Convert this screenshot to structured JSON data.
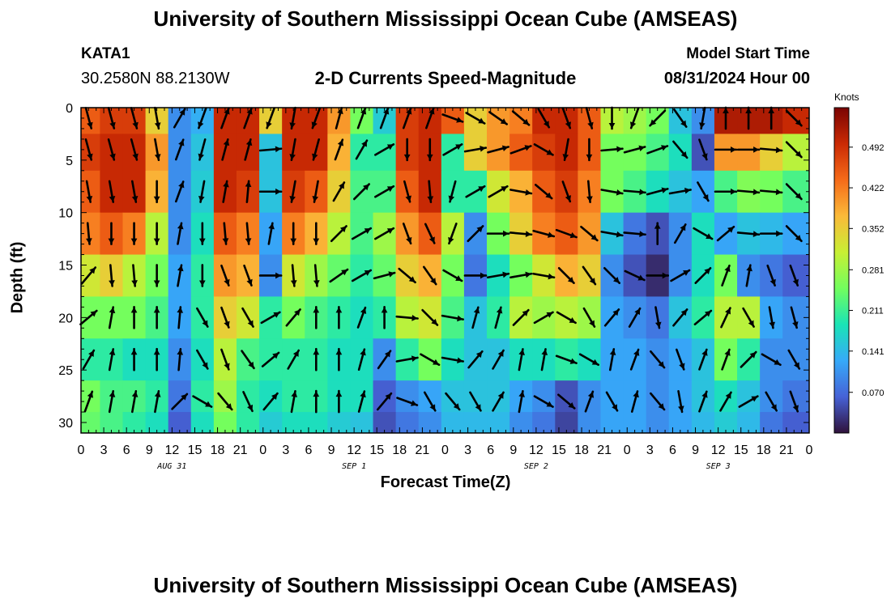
{
  "header": {
    "title": "University of Southern Mississippi Ocean Cube (AMSEAS)",
    "station": "KATA1",
    "coordinates": "30.2580N  88.2130W",
    "subtitle": "2-D Currents Speed-Magnitude",
    "model_start_label": "Model Start Time",
    "model_start_value": "08/31/2024 Hour 00"
  },
  "footer": {
    "title": "University of Southern Mississippi Ocean Cube (AMSEAS)"
  },
  "chart_data": {
    "type": "heatmap",
    "title": "2-D Currents Speed-Magnitude",
    "xlabel": "Forecast Time(Z)",
    "ylabel": "Depth (ft)",
    "colorbar_label": "Knots",
    "x_hours_range": [
      0,
      96
    ],
    "y_range": [
      0,
      31
    ],
    "y_ticks": [
      0,
      5,
      10,
      15,
      20,
      25,
      30
    ],
    "x_tick_labels": [
      "0",
      "3",
      "6",
      "9",
      "12",
      "15",
      "18",
      "21",
      "0",
      "3",
      "6",
      "9",
      "12",
      "15",
      "18",
      "21",
      "0",
      "3",
      "6",
      "9",
      "12",
      "15",
      "18",
      "21",
      "0",
      "3",
      "6",
      "9",
      "12",
      "15",
      "18",
      "21",
      "0"
    ],
    "date_labels": [
      {
        "label": "AUG 31",
        "hour": 12
      },
      {
        "label": "SEP 1",
        "hour": 36
      },
      {
        "label": "SEP 2",
        "hour": 60
      },
      {
        "label": "SEP 3",
        "hour": 84
      }
    ],
    "colorbar_ticks": [
      0.07,
      0.141,
      0.211,
      0.281,
      0.352,
      0.422,
      0.492
    ],
    "colorbar_tick_labels": [
      "0.070",
      "0.141",
      "0.211",
      "0.281",
      "0.352",
      "0.422",
      "0.492"
    ],
    "colorbar_range": [
      0,
      0.56
    ],
    "colormap": [
      "#30123b",
      "#4662d7",
      "#36aaf9",
      "#1ae4b6",
      "#72fe5e",
      "#c8ef34",
      "#faba39",
      "#f66b19",
      "#ca2a04",
      "#7a0403"
    ],
    "depths_ft": [
      1,
      4,
      8,
      12,
      16,
      20,
      24,
      28,
      30
    ],
    "hours": [
      1,
      4,
      7,
      10,
      13,
      16,
      19,
      22,
      25,
      28,
      31,
      34,
      37,
      40,
      43,
      46,
      49,
      52,
      55,
      58,
      61,
      64,
      67,
      70,
      73,
      76,
      79,
      82,
      85,
      88,
      91,
      94
    ],
    "speed_knots": [
      [
        0.45,
        0.48,
        0.48,
        0.35,
        0.1,
        0.13,
        0.5,
        0.5,
        0.35,
        0.5,
        0.5,
        0.4,
        0.25,
        0.16,
        0.48,
        0.5,
        0.45,
        0.35,
        0.4,
        0.42,
        0.5,
        0.5,
        0.45,
        0.3,
        0.28,
        0.25,
        0.15,
        0.1,
        0.52,
        0.52,
        0.52,
        0.5
      ],
      [
        0.48,
        0.5,
        0.5,
        0.4,
        0.1,
        0.15,
        0.5,
        0.5,
        0.15,
        0.5,
        0.5,
        0.38,
        0.2,
        0.2,
        0.48,
        0.5,
        0.2,
        0.35,
        0.4,
        0.45,
        0.48,
        0.5,
        0.45,
        0.25,
        0.25,
        0.22,
        0.18,
        0.05,
        0.4,
        0.4,
        0.35,
        0.3
      ],
      [
        0.45,
        0.5,
        0.5,
        0.38,
        0.1,
        0.16,
        0.5,
        0.48,
        0.15,
        0.48,
        0.45,
        0.35,
        0.22,
        0.22,
        0.45,
        0.5,
        0.2,
        0.2,
        0.32,
        0.38,
        0.45,
        0.48,
        0.42,
        0.25,
        0.22,
        0.18,
        0.15,
        0.12,
        0.22,
        0.26,
        0.25,
        0.22
      ],
      [
        0.42,
        0.45,
        0.42,
        0.3,
        0.1,
        0.18,
        0.45,
        0.42,
        0.12,
        0.42,
        0.38,
        0.3,
        0.22,
        0.28,
        0.4,
        0.45,
        0.3,
        0.1,
        0.25,
        0.35,
        0.42,
        0.45,
        0.4,
        0.15,
        0.08,
        0.05,
        0.1,
        0.18,
        0.12,
        0.15,
        0.14,
        0.12
      ],
      [
        0.32,
        0.35,
        0.3,
        0.25,
        0.12,
        0.2,
        0.4,
        0.38,
        0.1,
        0.32,
        0.28,
        0.24,
        0.2,
        0.24,
        0.35,
        0.38,
        0.25,
        0.08,
        0.18,
        0.25,
        0.32,
        0.38,
        0.35,
        0.1,
        0.05,
        0.02,
        0.1,
        0.18,
        0.25,
        0.1,
        0.08,
        0.06
      ],
      [
        0.25,
        0.25,
        0.25,
        0.22,
        0.12,
        0.2,
        0.35,
        0.32,
        0.2,
        0.25,
        0.22,
        0.2,
        0.18,
        0.2,
        0.3,
        0.32,
        0.22,
        0.15,
        0.2,
        0.3,
        0.28,
        0.3,
        0.28,
        0.12,
        0.1,
        0.08,
        0.15,
        0.2,
        0.3,
        0.3,
        0.12,
        0.1
      ],
      [
        0.2,
        0.2,
        0.18,
        0.18,
        0.1,
        0.18,
        0.3,
        0.22,
        0.2,
        0.2,
        0.2,
        0.18,
        0.18,
        0.1,
        0.2,
        0.25,
        0.18,
        0.15,
        0.15,
        0.18,
        0.18,
        0.2,
        0.18,
        0.12,
        0.12,
        0.1,
        0.12,
        0.15,
        0.25,
        0.2,
        0.1,
        0.1
      ],
      [
        0.25,
        0.22,
        0.22,
        0.2,
        0.08,
        0.2,
        0.28,
        0.2,
        0.18,
        0.2,
        0.2,
        0.18,
        0.18,
        0.06,
        0.1,
        0.12,
        0.15,
        0.15,
        0.15,
        0.12,
        0.1,
        0.05,
        0.1,
        0.12,
        0.12,
        0.1,
        0.12,
        0.15,
        0.18,
        0.15,
        0.1,
        0.08
      ],
      [
        0.24,
        0.22,
        0.2,
        0.18,
        0.06,
        0.18,
        0.25,
        0.2,
        0.16,
        0.18,
        0.18,
        0.16,
        0.15,
        0.05,
        0.08,
        0.1,
        0.14,
        0.14,
        0.14,
        0.1,
        0.08,
        0.04,
        0.1,
        0.12,
        0.12,
        0.1,
        0.12,
        0.14,
        0.16,
        0.14,
        0.08,
        0.06
      ]
    ],
    "direction_deg": [
      [
        165,
        165,
        165,
        170,
        30,
        200,
        20,
        20,
        200,
        190,
        200,
        15,
        20,
        20,
        20,
        20,
        110,
        120,
        125,
        130,
        150,
        160,
        165,
        180,
        200,
        225,
        145,
        190,
        0,
        0,
        0,
        135
      ],
      [
        165,
        165,
        165,
        170,
        20,
        195,
        15,
        15,
        85,
        190,
        195,
        20,
        30,
        60,
        180,
        180,
        60,
        80,
        75,
        70,
        120,
        190,
        180,
        85,
        75,
        70,
        140,
        160,
        90,
        90,
        95,
        135
      ],
      [
        170,
        170,
        170,
        180,
        20,
        190,
        10,
        5,
        90,
        190,
        190,
        30,
        45,
        60,
        165,
        175,
        195,
        60,
        60,
        100,
        130,
        160,
        175,
        100,
        95,
        75,
        80,
        150,
        90,
        95,
        95,
        135
      ],
      [
        175,
        180,
        180,
        180,
        10,
        180,
        175,
        175,
        10,
        180,
        180,
        45,
        60,
        60,
        160,
        155,
        200,
        45,
        90,
        95,
        105,
        110,
        130,
        100,
        95,
        0,
        30,
        120,
        50,
        95,
        90,
        135
      ],
      [
        40,
        175,
        175,
        180,
        10,
        180,
        160,
        160,
        90,
        175,
        175,
        55,
        60,
        75,
        130,
        145,
        120,
        90,
        80,
        80,
        100,
        135,
        145,
        135,
        115,
        90,
        60,
        45,
        20,
        10,
        160,
        160
      ],
      [
        50,
        10,
        0,
        0,
        5,
        150,
        160,
        150,
        60,
        40,
        0,
        0,
        20,
        0,
        95,
        135,
        100,
        15,
        15,
        45,
        60,
        120,
        150,
        40,
        30,
        170,
        40,
        50,
        25,
        150,
        170,
        165
      ],
      [
        30,
        10,
        0,
        0,
        5,
        150,
        160,
        145,
        50,
        30,
        0,
        0,
        15,
        35,
        80,
        120,
        100,
        40,
        30,
        10,
        10,
        110,
        120,
        10,
        20,
        140,
        160,
        20,
        20,
        45,
        120,
        150
      ],
      [
        20,
        10,
        10,
        10,
        45,
        120,
        140,
        155,
        40,
        10,
        0,
        0,
        15,
        40,
        110,
        150,
        140,
        150,
        30,
        10,
        120,
        130,
        20,
        150,
        15,
        140,
        170,
        20,
        30,
        60,
        150,
        160
      ],
      [
        15,
        10,
        10,
        10,
        45,
        120,
        130,
        150,
        40,
        10,
        0,
        0,
        15,
        40,
        120,
        150,
        130,
        150,
        30,
        10,
        120,
        130,
        20,
        150,
        15,
        140,
        170,
        20,
        30,
        60,
        150,
        160
      ]
    ]
  }
}
